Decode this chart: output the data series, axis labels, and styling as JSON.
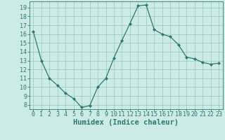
{
  "x": [
    0,
    1,
    2,
    3,
    4,
    5,
    6,
    7,
    8,
    9,
    10,
    11,
    12,
    13,
    14,
    15,
    16,
    17,
    18,
    19,
    20,
    21,
    22,
    23
  ],
  "y": [
    16.3,
    13.0,
    11.0,
    10.2,
    9.3,
    8.7,
    7.7,
    7.9,
    10.0,
    11.0,
    13.3,
    15.3,
    17.2,
    19.2,
    19.3,
    16.5,
    16.0,
    15.7,
    14.8,
    13.4,
    13.2,
    12.8,
    12.6,
    12.7
  ],
  "line_color": "#2d7a6a",
  "marker": "D",
  "marker_size": 2.0,
  "bg_color": "#cceae6",
  "grid_color": "#a0ccc8",
  "xlabel": "Humidex (Indice chaleur)",
  "xlabel_fontsize": 7.5,
  "tick_fontsize": 6.0,
  "ylim": [
    7.5,
    19.7
  ],
  "xlim": [
    -0.5,
    23.5
  ],
  "yticks": [
    8,
    9,
    10,
    11,
    12,
    13,
    14,
    15,
    16,
    17,
    18,
    19
  ],
  "xticks": [
    0,
    1,
    2,
    3,
    4,
    5,
    6,
    7,
    8,
    9,
    10,
    11,
    12,
    13,
    14,
    15,
    16,
    17,
    18,
    19,
    20,
    21,
    22,
    23
  ],
  "tick_color": "#2d7a6a",
  "axis_color": "#2d7a6a",
  "line_width": 0.9
}
